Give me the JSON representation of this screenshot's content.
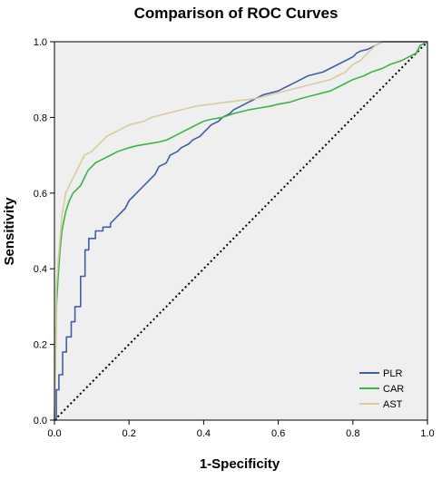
{
  "chart_data": {
    "type": "line",
    "title": "Comparison of  ROC Curves",
    "xlabel": "1-Specificity",
    "ylabel": "Sensitivity",
    "xlim": [
      0,
      1
    ],
    "ylim": [
      0,
      1
    ],
    "xticks": [
      "0.0",
      "0.2",
      "0.4",
      "0.6",
      "0.8",
      "1.0"
    ],
    "yticks": [
      "0.0",
      "0.2",
      "0.4",
      "0.6",
      "0.8",
      "1.0"
    ],
    "grid": false,
    "legend_position": "bottom-right",
    "reference_line": {
      "style": "dotted",
      "color": "#000000",
      "x": [
        0,
        1
      ],
      "y": [
        0,
        1
      ]
    },
    "series": [
      {
        "name": "PLR",
        "color": "#3f5fa6",
        "x": [
          0,
          0.005,
          0.005,
          0.012,
          0.012,
          0.022,
          0.022,
          0.032,
          0.032,
          0.045,
          0.045,
          0.055,
          0.055,
          0.07,
          0.07,
          0.082,
          0.082,
          0.092,
          0.092,
          0.11,
          0.11,
          0.13,
          0.13,
          0.15,
          0.15,
          0.16,
          0.17,
          0.18,
          0.19,
          0.2,
          0.21,
          0.22,
          0.24,
          0.25,
          0.27,
          0.28,
          0.3,
          0.31,
          0.33,
          0.34,
          0.36,
          0.37,
          0.38,
          0.39,
          0.4,
          0.41,
          0.42,
          0.44,
          0.45,
          0.47,
          0.48,
          0.5,
          0.52,
          0.54,
          0.56,
          0.58,
          0.6,
          0.61,
          0.62,
          0.63,
          0.64,
          0.65,
          0.66,
          0.68,
          0.72,
          0.76,
          0.78,
          0.8,
          0.81,
          0.82,
          0.84,
          0.86,
          0.87,
          0.88,
          1.0
        ],
        "y": [
          0,
          0,
          0.08,
          0.08,
          0.12,
          0.12,
          0.18,
          0.18,
          0.22,
          0.22,
          0.26,
          0.26,
          0.3,
          0.3,
          0.38,
          0.38,
          0.45,
          0.45,
          0.48,
          0.48,
          0.5,
          0.5,
          0.51,
          0.51,
          0.52,
          0.53,
          0.54,
          0.55,
          0.56,
          0.58,
          0.59,
          0.6,
          0.62,
          0.63,
          0.65,
          0.67,
          0.68,
          0.7,
          0.71,
          0.72,
          0.73,
          0.74,
          0.745,
          0.75,
          0.76,
          0.77,
          0.78,
          0.79,
          0.8,
          0.81,
          0.82,
          0.83,
          0.84,
          0.85,
          0.86,
          0.865,
          0.87,
          0.875,
          0.88,
          0.885,
          0.89,
          0.895,
          0.9,
          0.91,
          0.92,
          0.94,
          0.95,
          0.96,
          0.97,
          0.975,
          0.98,
          0.99,
          0.995,
          1.0,
          1.0
        ]
      },
      {
        "name": "CAR",
        "color": "#3db34a",
        "x": [
          0,
          0.005,
          0.01,
          0.015,
          0.02,
          0.03,
          0.04,
          0.05,
          0.07,
          0.08,
          0.09,
          0.11,
          0.13,
          0.15,
          0.17,
          0.2,
          0.22,
          0.25,
          0.28,
          0.3,
          0.32,
          0.34,
          0.36,
          0.38,
          0.4,
          0.42,
          0.45,
          0.48,
          0.5,
          0.52,
          0.55,
          0.58,
          0.6,
          0.63,
          0.66,
          0.7,
          0.72,
          0.74,
          0.76,
          0.78,
          0.8,
          0.83,
          0.85,
          0.88,
          0.9,
          0.93,
          0.95,
          0.97,
          0.98,
          1.0
        ],
        "y": [
          0,
          0.3,
          0.38,
          0.45,
          0.5,
          0.55,
          0.58,
          0.6,
          0.62,
          0.64,
          0.66,
          0.68,
          0.69,
          0.7,
          0.71,
          0.72,
          0.725,
          0.73,
          0.735,
          0.74,
          0.75,
          0.76,
          0.77,
          0.78,
          0.79,
          0.795,
          0.8,
          0.81,
          0.815,
          0.82,
          0.825,
          0.83,
          0.835,
          0.84,
          0.85,
          0.86,
          0.865,
          0.87,
          0.88,
          0.89,
          0.9,
          0.91,
          0.92,
          0.93,
          0.94,
          0.95,
          0.96,
          0.97,
          0.99,
          1.0
        ]
      },
      {
        "name": "AST",
        "color": "#d9cc9c",
        "x": [
          0,
          0.005,
          0.01,
          0.015,
          0.02,
          0.025,
          0.03,
          0.04,
          0.05,
          0.06,
          0.07,
          0.08,
          0.1,
          0.12,
          0.14,
          0.16,
          0.18,
          0.2,
          0.22,
          0.24,
          0.26,
          0.3,
          0.34,
          0.38,
          0.42,
          0.46,
          0.5,
          0.54,
          0.58,
          0.62,
          0.66,
          0.7,
          0.74,
          0.76,
          0.78,
          0.8,
          0.82,
          0.84,
          0.86,
          0.88,
          1.0
        ],
        "y": [
          0,
          0.35,
          0.42,
          0.48,
          0.54,
          0.57,
          0.6,
          0.62,
          0.64,
          0.66,
          0.68,
          0.7,
          0.71,
          0.73,
          0.75,
          0.76,
          0.77,
          0.78,
          0.785,
          0.79,
          0.8,
          0.81,
          0.82,
          0.83,
          0.835,
          0.84,
          0.845,
          0.85,
          0.86,
          0.87,
          0.88,
          0.89,
          0.9,
          0.91,
          0.92,
          0.94,
          0.95,
          0.97,
          0.99,
          1.0,
          1.0
        ]
      }
    ]
  }
}
